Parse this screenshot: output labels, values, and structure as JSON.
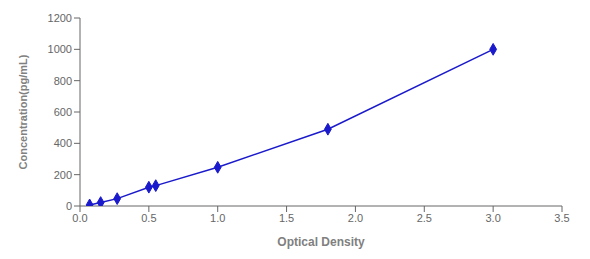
{
  "chart_data": {
    "type": "line",
    "x": [
      0.07,
      0.15,
      0.27,
      0.5,
      0.55,
      1.0,
      1.8,
      3.0
    ],
    "values": [
      7,
      22,
      47,
      120,
      130,
      247,
      490,
      1000
    ],
    "color": "#1a1acc",
    "marker": "diamond",
    "xlabel": "Optical Density",
    "ylabel": "Concentration(pg/mL)",
    "xlim": [
      0,
      3.5
    ],
    "ylim": [
      0,
      1200
    ],
    "xticks": [
      {
        "value": 0,
        "label": "0.0"
      },
      0.5,
      {
        "value": 1,
        "label": "1.0"
      },
      1.5,
      {
        "value": 2,
        "label": "2.0"
      },
      2.5,
      {
        "value": 3,
        "label": "3.0"
      },
      3.5
    ],
    "yticks": [
      0,
      200,
      400,
      600,
      800,
      1000,
      1200
    ],
    "grid": false
  }
}
